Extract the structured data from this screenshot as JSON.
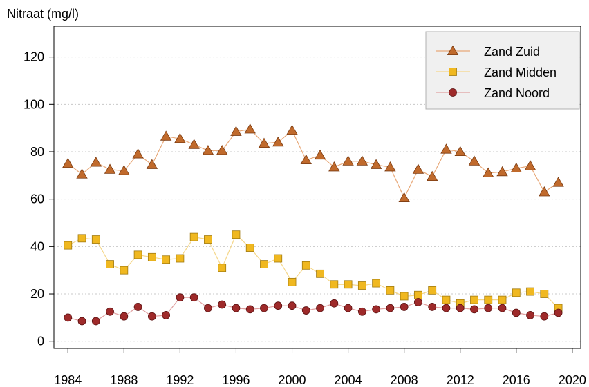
{
  "chart_data": {
    "type": "line",
    "title": "",
    "ylabel": "Nitraat (mg/l)",
    "xlabel": "",
    "xlim": [
      1983,
      2020.6
    ],
    "ylim": [
      -3,
      133
    ],
    "xticks": [
      1984,
      1988,
      1992,
      1996,
      2000,
      2004,
      2008,
      2012,
      2016,
      2020
    ],
    "yticks": [
      0,
      20,
      40,
      60,
      80,
      100,
      120
    ],
    "grid": "horizontal-dotted",
    "legend_position": "top-right",
    "x": [
      1984,
      1985,
      1986,
      1987,
      1988,
      1989,
      1990,
      1991,
      1992,
      1993,
      1994,
      1995,
      1996,
      1997,
      1998,
      1999,
      2000,
      2001,
      2002,
      2003,
      2004,
      2005,
      2006,
      2007,
      2008,
      2009,
      2010,
      2011,
      2012,
      2013,
      2014,
      2015,
      2016,
      2017,
      2018,
      2019
    ],
    "series": [
      {
        "name": "Zand Zuid",
        "marker": "triangle",
        "line_color": "#e8a878",
        "marker_color": "#c06a2c",
        "values": [
          75,
          70.5,
          75.5,
          72.5,
          72,
          79,
          74.5,
          86.5,
          85.5,
          83,
          80.5,
          80.5,
          88.5,
          89.5,
          83.5,
          84,
          89,
          76.5,
          78.5,
          73.5,
          76,
          76,
          74.5,
          73.5,
          60.5,
          72.5,
          69.5,
          81,
          80,
          76,
          71,
          71.5,
          73,
          74,
          63,
          67
        ]
      },
      {
        "name": "Zand Midden",
        "marker": "square",
        "line_color": "#f5d78a",
        "marker_color": "#f0b820",
        "values": [
          40.5,
          43.5,
          43,
          32.5,
          30,
          36.5,
          35.5,
          34.5,
          35,
          44,
          43,
          31,
          45,
          39.5,
          32.5,
          35,
          25,
          32,
          28.5,
          24,
          24,
          23.5,
          24.5,
          21.5,
          19,
          19.5,
          21.5,
          17.5,
          16,
          17.5,
          17.5,
          17.5,
          20.5,
          21,
          20,
          14
        ]
      },
      {
        "name": "Zand Noord",
        "marker": "circle",
        "line_color": "#e0a0a0",
        "marker_color": "#9e2a2a",
        "values": [
          10,
          8.5,
          8.5,
          12.5,
          10.5,
          14.5,
          10.5,
          11,
          18.5,
          18.5,
          14,
          15.5,
          14,
          13.5,
          14,
          15,
          15,
          13,
          14,
          16,
          14,
          12.5,
          13.5,
          14,
          14.5,
          16.5,
          14.5,
          14,
          14,
          13.5,
          14,
          14,
          12,
          11,
          10.5,
          12
        ]
      }
    ]
  }
}
